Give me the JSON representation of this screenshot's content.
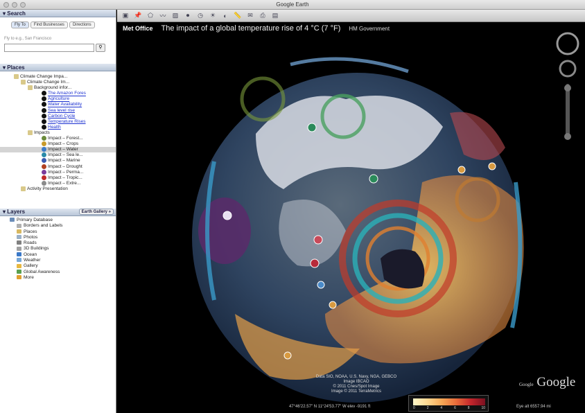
{
  "window": {
    "title": "Google Earth"
  },
  "search": {
    "header": "Search",
    "tabs": [
      "Fly To",
      "Find Businesses",
      "Directions"
    ],
    "hint": "Fly to e.g., San Francisco"
  },
  "places": {
    "header": "Places",
    "items": [
      {
        "label": "Climate Change Impa...",
        "indent": 20,
        "type": "folder"
      },
      {
        "label": "Climate Change Im...",
        "indent": 30,
        "type": "folder"
      },
      {
        "label": "Background infor...",
        "indent": 40,
        "type": "folder"
      },
      {
        "label": "The Amazon Fores",
        "indent": 60,
        "type": "link"
      },
      {
        "label": "Agriculture",
        "indent": 60,
        "type": "link"
      },
      {
        "label": "Water Availability",
        "indent": 60,
        "type": "link"
      },
      {
        "label": "Sea level rise",
        "indent": 60,
        "type": "link"
      },
      {
        "label": "Carbon Cycle",
        "indent": 60,
        "type": "link"
      },
      {
        "label": "Temperature Rises",
        "indent": 60,
        "type": "link"
      },
      {
        "label": "Health",
        "indent": 60,
        "type": "link"
      },
      {
        "label": "Impacts",
        "indent": 40,
        "type": "folder"
      },
      {
        "label": "Impact – Forest...",
        "indent": 60,
        "type": "impact",
        "color": "#6a8a3a"
      },
      {
        "label": "Impact – Crops",
        "indent": 60,
        "type": "impact",
        "color": "#c89a2a"
      },
      {
        "label": "Impact – Water",
        "indent": 60,
        "type": "impact",
        "color": "#3a7ac8",
        "selected": true
      },
      {
        "label": "Impact – Sea le...",
        "indent": 60,
        "type": "impact",
        "color": "#2a8aa8"
      },
      {
        "label": "Impact – Marine",
        "indent": 60,
        "type": "impact",
        "color": "#3a5ab0"
      },
      {
        "label": "Impact – Drought",
        "indent": 60,
        "type": "impact",
        "color": "#b04020"
      },
      {
        "label": "Impact – Perma...",
        "indent": 60,
        "type": "impact",
        "color": "#7a3a9a"
      },
      {
        "label": "Impact – Tropic...",
        "indent": 60,
        "type": "impact",
        "color": "#c02a2a"
      },
      {
        "label": "Impact – Extre...",
        "indent": 60,
        "type": "impact",
        "color": "#8a8a8a"
      },
      {
        "label": "Activity Presentation",
        "indent": 30,
        "type": "folder"
      }
    ]
  },
  "layers": {
    "header": "Layers",
    "gallery_button": "Earth Gallery »",
    "items": [
      {
        "label": "Primary Database",
        "color": "#6b8db8"
      },
      {
        "label": "Borders and Labels",
        "color": "#b0b0b0"
      },
      {
        "label": "Places",
        "color": "#d8b860"
      },
      {
        "label": "Photos",
        "color": "#9ab0c8"
      },
      {
        "label": "Roads",
        "color": "#808080"
      },
      {
        "label": "3D Buildings",
        "color": "#a0a0a0"
      },
      {
        "label": "Ocean",
        "color": "#3a78c8"
      },
      {
        "label": "Weather",
        "color": "#78a8d8"
      },
      {
        "label": "Gallery",
        "color": "#e8b840"
      },
      {
        "label": "Global Awareness",
        "color": "#5aa050"
      },
      {
        "label": "More",
        "color": "#e0a030"
      }
    ]
  },
  "banner": {
    "logo": "Met Office",
    "headline": "The impact of a global temperature rise of 4 °C (7 °F)",
    "gov": "HM Government"
  },
  "attribution": [
    "Data SIO, NOAA, U.S. Navy, NGA, GEBCO",
    "Image IBCAO",
    "© 2011 Cnes/Spot Image",
    "Image © 2011 TerraMetrics"
  ],
  "google_logo": {
    "prefix": "Google",
    "word": "Google"
  },
  "status": {
    "coords": "47°46'22.57\" N  11°24'53.77\" W  elev -9191 ft",
    "eye": "Eye alt 6557.94 mi"
  },
  "legend": {
    "ticks": [
      "0",
      "2",
      "4",
      "6",
      "8",
      "10"
    ]
  },
  "colors": {
    "accent": "#3a78c8",
    "panel_header": "#c8d2e0"
  }
}
